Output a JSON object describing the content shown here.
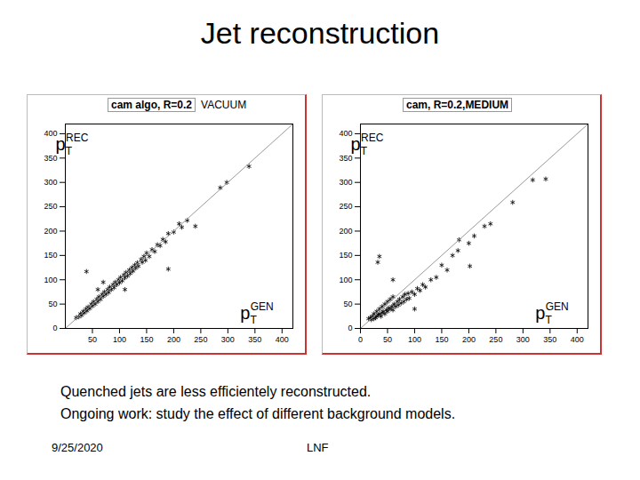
{
  "slide": {
    "title": "Jet reconstruction",
    "caption": [
      "Quenched jets are less efficientely reconstructed.",
      "Ongoing work: study the effect of different background models."
    ],
    "footer": {
      "date": "9/25/2020",
      "org": "LNF"
    }
  },
  "chart_data": [
    {
      "type": "scatter",
      "title": "cam algo, R=0.2",
      "annotation": "VACUUM",
      "x_label": {
        "base": "p",
        "sub": "T",
        "sup": "GEN"
      },
      "y_label": {
        "base": "p",
        "sub": "T",
        "sup": "REC"
      },
      "xlim": [
        0,
        420
      ],
      "ylim": [
        0,
        420
      ],
      "xticks": [
        50,
        100,
        150,
        200,
        250,
        300,
        350,
        400
      ],
      "yticks": [
        0,
        50,
        100,
        150,
        200,
        250,
        300,
        350,
        400
      ],
      "grid": false,
      "series": [
        {
          "type": "scatter",
          "marker": "asterisk",
          "color": "#000000",
          "x": [
            20,
            25,
            28,
            30,
            33,
            35,
            38,
            40,
            42,
            45,
            48,
            50,
            52,
            55,
            58,
            60,
            62,
            65,
            68,
            70,
            72,
            75,
            78,
            80,
            82,
            85,
            88,
            90,
            92,
            95,
            98,
            100,
            102,
            105,
            108,
            110,
            112,
            115,
            118,
            120,
            123,
            125,
            128,
            130,
            133,
            135,
            140,
            142,
            145,
            148,
            150,
            155,
            160,
            165,
            170,
            175,
            180,
            185,
            190,
            200,
            210,
            215,
            225,
            240,
            286,
            298,
            339,
            190,
            39,
            60,
            110,
            70
          ],
          "values": [
            22,
            24,
            30,
            27,
            35,
            32,
            40,
            36,
            44,
            41,
            50,
            46,
            55,
            50,
            60,
            55,
            65,
            60,
            70,
            66,
            75,
            70,
            80,
            74,
            85,
            80,
            90,
            84,
            95,
            90,
            100,
            94,
            105,
            98,
            110,
            104,
            115,
            108,
            120,
            113,
            125,
            118,
            130,
            124,
            135,
            128,
            142,
            136,
            148,
            140,
            155,
            148,
            162,
            158,
            172,
            170,
            183,
            178,
            195,
            198,
            215,
            208,
            222,
            210,
            289,
            300,
            333,
            122,
            117,
            80,
            80,
            95
          ]
        },
        {
          "type": "line",
          "line_style": "solid",
          "color": "#999999",
          "x": [
            0,
            420
          ],
          "values": [
            0,
            420
          ]
        }
      ]
    },
    {
      "type": "scatter",
      "title": "cam, R=0.2,MEDIUM",
      "x_label": {
        "base": "p",
        "sub": "T",
        "sup": "GEN"
      },
      "y_label": {
        "base": "p",
        "sub": "T",
        "sup": "REC"
      },
      "xlim": [
        0,
        420
      ],
      "ylim": [
        0,
        420
      ],
      "xticks": [
        0,
        50,
        100,
        150,
        200,
        250,
        300,
        350,
        400
      ],
      "yticks": [
        0,
        50,
        100,
        150,
        200,
        250,
        300,
        350,
        400
      ],
      "grid": false,
      "series": [
        {
          "type": "scatter",
          "marker": "asterisk",
          "color": "#000000",
          "x": [
            15,
            18,
            20,
            22,
            25,
            25,
            28,
            30,
            30,
            33,
            35,
            35,
            38,
            40,
            40,
            42,
            45,
            45,
            48,
            50,
            50,
            52,
            55,
            55,
            58,
            60,
            60,
            62,
            65,
            68,
            70,
            72,
            75,
            78,
            80,
            82,
            85,
            88,
            90,
            95,
            100,
            105,
            110,
            115,
            120,
            130,
            140,
            150,
            160,
            170,
            180,
            182,
            200,
            202,
            210,
            229,
            240,
            281,
            318,
            342,
            35,
            32,
            60,
            100
          ],
          "values": [
            20,
            22,
            18,
            25,
            20,
            30,
            22,
            25,
            35,
            28,
            30,
            40,
            25,
            32,
            45,
            35,
            30,
            50,
            38,
            35,
            55,
            42,
            40,
            60,
            45,
            38,
            65,
            50,
            45,
            55,
            48,
            60,
            52,
            65,
            55,
            70,
            60,
            72,
            62,
            75,
            70,
            82,
            78,
            90,
            85,
            100,
            105,
            130,
            120,
            150,
            160,
            182,
            175,
            128,
            190,
            210,
            215,
            259,
            305,
            307,
            148,
            136,
            100,
            40
          ]
        },
        {
          "type": "line",
          "line_style": "solid",
          "color": "#999999",
          "x": [
            0,
            420
          ],
          "values": [
            0,
            420
          ]
        }
      ]
    }
  ]
}
